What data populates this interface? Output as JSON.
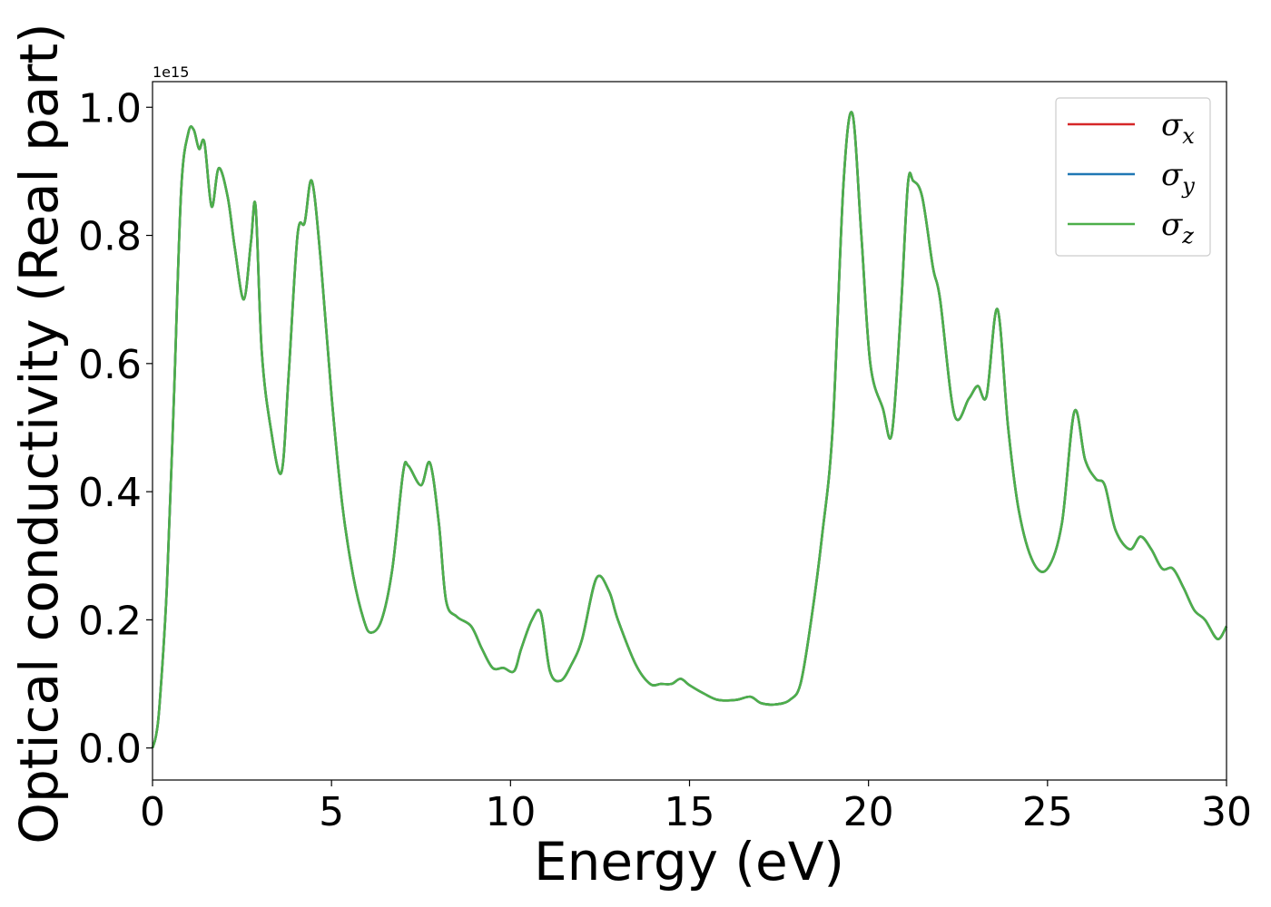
{
  "chart_data": {
    "type": "line",
    "xlabel": "Energy (eV)",
    "ylabel": "Optical conductivity (Real part)",
    "offset_text": "1e15",
    "scale": 1000000000000000.0,
    "xlim": [
      0,
      30
    ],
    "ylim": [
      -0.05,
      1.04
    ],
    "xticks": [
      0,
      5,
      10,
      15,
      20,
      25,
      30
    ],
    "xtick_labels": [
      "0",
      "5",
      "10",
      "15",
      "20",
      "25",
      "30"
    ],
    "yticks": [
      0.0,
      0.2,
      0.4,
      0.6,
      0.8,
      1.0
    ],
    "ytick_labels": [
      "0.0",
      "0.2",
      "0.4",
      "0.6",
      "0.8",
      "1.0"
    ],
    "grid": false,
    "legend_position": "top-right",
    "legend": [
      {
        "base": "σ",
        "sub": "x",
        "color": "#d62728"
      },
      {
        "base": "σ",
        "sub": "y",
        "color": "#1f77b4"
      },
      {
        "base": "σ",
        "sub": "z",
        "color": "#4daf4a"
      }
    ],
    "x": [
      0,
      0.1,
      0.2,
      0.4,
      0.6,
      0.8,
      1.0,
      1.15,
      1.3,
      1.45,
      1.65,
      1.85,
      2.1,
      2.3,
      2.55,
      2.75,
      2.88,
      3.05,
      3.3,
      3.6,
      3.8,
      4.05,
      4.25,
      4.45,
      4.7,
      5.0,
      5.3,
      5.6,
      5.9,
      6.1,
      6.4,
      6.7,
      7.0,
      7.15,
      7.5,
      7.75,
      8.0,
      8.2,
      8.5,
      8.9,
      9.2,
      9.5,
      9.8,
      10.1,
      10.3,
      10.6,
      10.85,
      11.1,
      11.4,
      11.7,
      12.0,
      12.4,
      12.75,
      13.0,
      13.5,
      13.9,
      14.2,
      14.5,
      14.75,
      15.0,
      15.4,
      15.8,
      16.3,
      16.7,
      17.0,
      17.4,
      17.8,
      18.1,
      18.4,
      18.7,
      19.0,
      19.3,
      19.55,
      19.8,
      20.05,
      20.4,
      20.65,
      20.9,
      21.1,
      21.25,
      21.5,
      21.8,
      22.0,
      22.4,
      22.8,
      23.05,
      23.3,
      23.6,
      23.9,
      24.2,
      24.6,
      25.0,
      25.4,
      25.75,
      26.05,
      26.35,
      26.6,
      26.9,
      27.3,
      27.6,
      27.9,
      28.2,
      28.5,
      28.8,
      29.1,
      29.4,
      29.75,
      30.0
    ],
    "series": [
      {
        "name": "σx",
        "color": "#d62728",
        "values": [
          0.0,
          0.02,
          0.07,
          0.25,
          0.55,
          0.87,
          0.96,
          0.965,
          0.935,
          0.945,
          0.845,
          0.905,
          0.86,
          0.78,
          0.7,
          0.79,
          0.845,
          0.62,
          0.5,
          0.43,
          0.58,
          0.8,
          0.82,
          0.885,
          0.76,
          0.55,
          0.38,
          0.27,
          0.2,
          0.18,
          0.2,
          0.28,
          0.43,
          0.44,
          0.41,
          0.445,
          0.35,
          0.23,
          0.205,
          0.19,
          0.155,
          0.125,
          0.125,
          0.12,
          0.155,
          0.2,
          0.21,
          0.12,
          0.105,
          0.13,
          0.17,
          0.265,
          0.245,
          0.2,
          0.13,
          0.1,
          0.1,
          0.1,
          0.108,
          0.098,
          0.085,
          0.075,
          0.075,
          0.08,
          0.07,
          0.068,
          0.075,
          0.1,
          0.2,
          0.33,
          0.5,
          0.88,
          0.99,
          0.8,
          0.6,
          0.53,
          0.49,
          0.68,
          0.88,
          0.885,
          0.86,
          0.75,
          0.7,
          0.52,
          0.545,
          0.565,
          0.55,
          0.685,
          0.5,
          0.37,
          0.29,
          0.28,
          0.35,
          0.525,
          0.45,
          0.42,
          0.41,
          0.34,
          0.31,
          0.33,
          0.31,
          0.28,
          0.28,
          0.25,
          0.215,
          0.2,
          0.17,
          0.19
        ]
      },
      {
        "name": "σy",
        "color": "#1f77b4",
        "values": [
          0.0,
          0.02,
          0.07,
          0.25,
          0.55,
          0.87,
          0.96,
          0.965,
          0.935,
          0.945,
          0.845,
          0.905,
          0.86,
          0.78,
          0.7,
          0.79,
          0.845,
          0.62,
          0.5,
          0.43,
          0.58,
          0.8,
          0.82,
          0.885,
          0.76,
          0.55,
          0.38,
          0.27,
          0.2,
          0.18,
          0.2,
          0.28,
          0.43,
          0.44,
          0.41,
          0.445,
          0.35,
          0.23,
          0.205,
          0.19,
          0.155,
          0.125,
          0.125,
          0.12,
          0.155,
          0.2,
          0.21,
          0.12,
          0.105,
          0.13,
          0.17,
          0.265,
          0.245,
          0.2,
          0.13,
          0.1,
          0.1,
          0.1,
          0.108,
          0.098,
          0.085,
          0.075,
          0.075,
          0.08,
          0.07,
          0.068,
          0.075,
          0.1,
          0.2,
          0.33,
          0.5,
          0.88,
          0.99,
          0.8,
          0.6,
          0.53,
          0.49,
          0.68,
          0.88,
          0.885,
          0.86,
          0.75,
          0.7,
          0.52,
          0.545,
          0.565,
          0.55,
          0.685,
          0.5,
          0.37,
          0.29,
          0.28,
          0.35,
          0.525,
          0.45,
          0.42,
          0.41,
          0.34,
          0.31,
          0.33,
          0.31,
          0.28,
          0.28,
          0.25,
          0.215,
          0.2,
          0.17,
          0.19
        ]
      },
      {
        "name": "σz",
        "color": "#4daf4a",
        "values": [
          0.0,
          0.02,
          0.07,
          0.25,
          0.55,
          0.87,
          0.96,
          0.965,
          0.935,
          0.945,
          0.845,
          0.905,
          0.86,
          0.78,
          0.7,
          0.79,
          0.845,
          0.62,
          0.5,
          0.43,
          0.58,
          0.8,
          0.82,
          0.885,
          0.76,
          0.55,
          0.38,
          0.27,
          0.2,
          0.18,
          0.2,
          0.28,
          0.43,
          0.44,
          0.41,
          0.445,
          0.35,
          0.23,
          0.205,
          0.19,
          0.155,
          0.125,
          0.125,
          0.12,
          0.155,
          0.2,
          0.21,
          0.12,
          0.105,
          0.13,
          0.17,
          0.265,
          0.245,
          0.2,
          0.13,
          0.1,
          0.1,
          0.1,
          0.108,
          0.098,
          0.085,
          0.075,
          0.075,
          0.08,
          0.07,
          0.068,
          0.075,
          0.1,
          0.2,
          0.33,
          0.5,
          0.88,
          0.99,
          0.8,
          0.6,
          0.53,
          0.49,
          0.68,
          0.88,
          0.885,
          0.86,
          0.75,
          0.7,
          0.52,
          0.545,
          0.565,
          0.55,
          0.685,
          0.5,
          0.37,
          0.29,
          0.28,
          0.35,
          0.525,
          0.45,
          0.42,
          0.41,
          0.34,
          0.31,
          0.33,
          0.31,
          0.28,
          0.28,
          0.25,
          0.215,
          0.2,
          0.17,
          0.19
        ]
      }
    ]
  }
}
